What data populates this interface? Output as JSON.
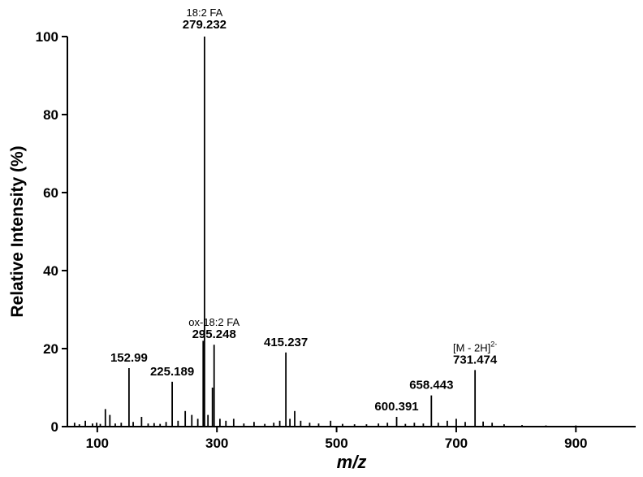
{
  "chart_data": {
    "type": "stem",
    "x_label": "m/z",
    "y_label": "Relative Intensity (%)",
    "xlim": [
      50,
      1000
    ],
    "ylim": [
      0,
      100
    ],
    "xticks": [
      100,
      300,
      500,
      700,
      900
    ],
    "yticks": [
      0,
      20,
      40,
      60,
      80,
      100
    ],
    "color": "#000000",
    "x": [
      62,
      70,
      80,
      92,
      99,
      105,
      113.5,
      121,
      130,
      140,
      152.99,
      160,
      174,
      185,
      195,
      205,
      215,
      225.189,
      235,
      247,
      258,
      268,
      277,
      279.232,
      285,
      292.5,
      295.248,
      305,
      315,
      328,
      345,
      362,
      380,
      395,
      405,
      415.237,
      422,
      430,
      440,
      455,
      470,
      490,
      510,
      530,
      550,
      570,
      585,
      600.391,
      615,
      630,
      645,
      658.443,
      670,
      685,
      700,
      715,
      731.474,
      745,
      760,
      780,
      810,
      850,
      900,
      950,
      990
    ],
    "values": [
      1,
      0.6,
      1.5,
      0.8,
      1,
      0.7,
      4.5,
      3,
      0.8,
      1,
      15,
      1.2,
      2.5,
      0.8,
      0.9,
      0.7,
      1.2,
      11.5,
      1.5,
      4,
      3,
      2,
      22,
      100,
      3,
      10,
      21,
      2,
      1.5,
      2,
      0.8,
      1.2,
      0.7,
      1,
      1.5,
      19,
      2,
      4,
      1.5,
      1,
      0.8,
      1.5,
      0.7,
      0.6,
      0.6,
      0.8,
      1,
      2.5,
      0.7,
      1,
      0.8,
      8,
      1,
      1.5,
      2,
      1.2,
      14.5,
      1.3,
      1,
      0.6,
      0.4,
      0.3,
      0.3,
      0.2,
      0.2
    ],
    "annotations": [
      {
        "x": 152.99
      },
      {
        "x": 225.189
      },
      {
        "x": 279.232,
        "name": "18:2 FA"
      },
      {
        "x": 295.248,
        "name": "ox-18:2 FA"
      },
      {
        "x": 415.237
      },
      {
        "x": 600.391
      },
      {
        "x": 658.443
      },
      {
        "x": 731.474,
        "name": "[M - 2H]",
        "sup": "2-"
      }
    ]
  }
}
